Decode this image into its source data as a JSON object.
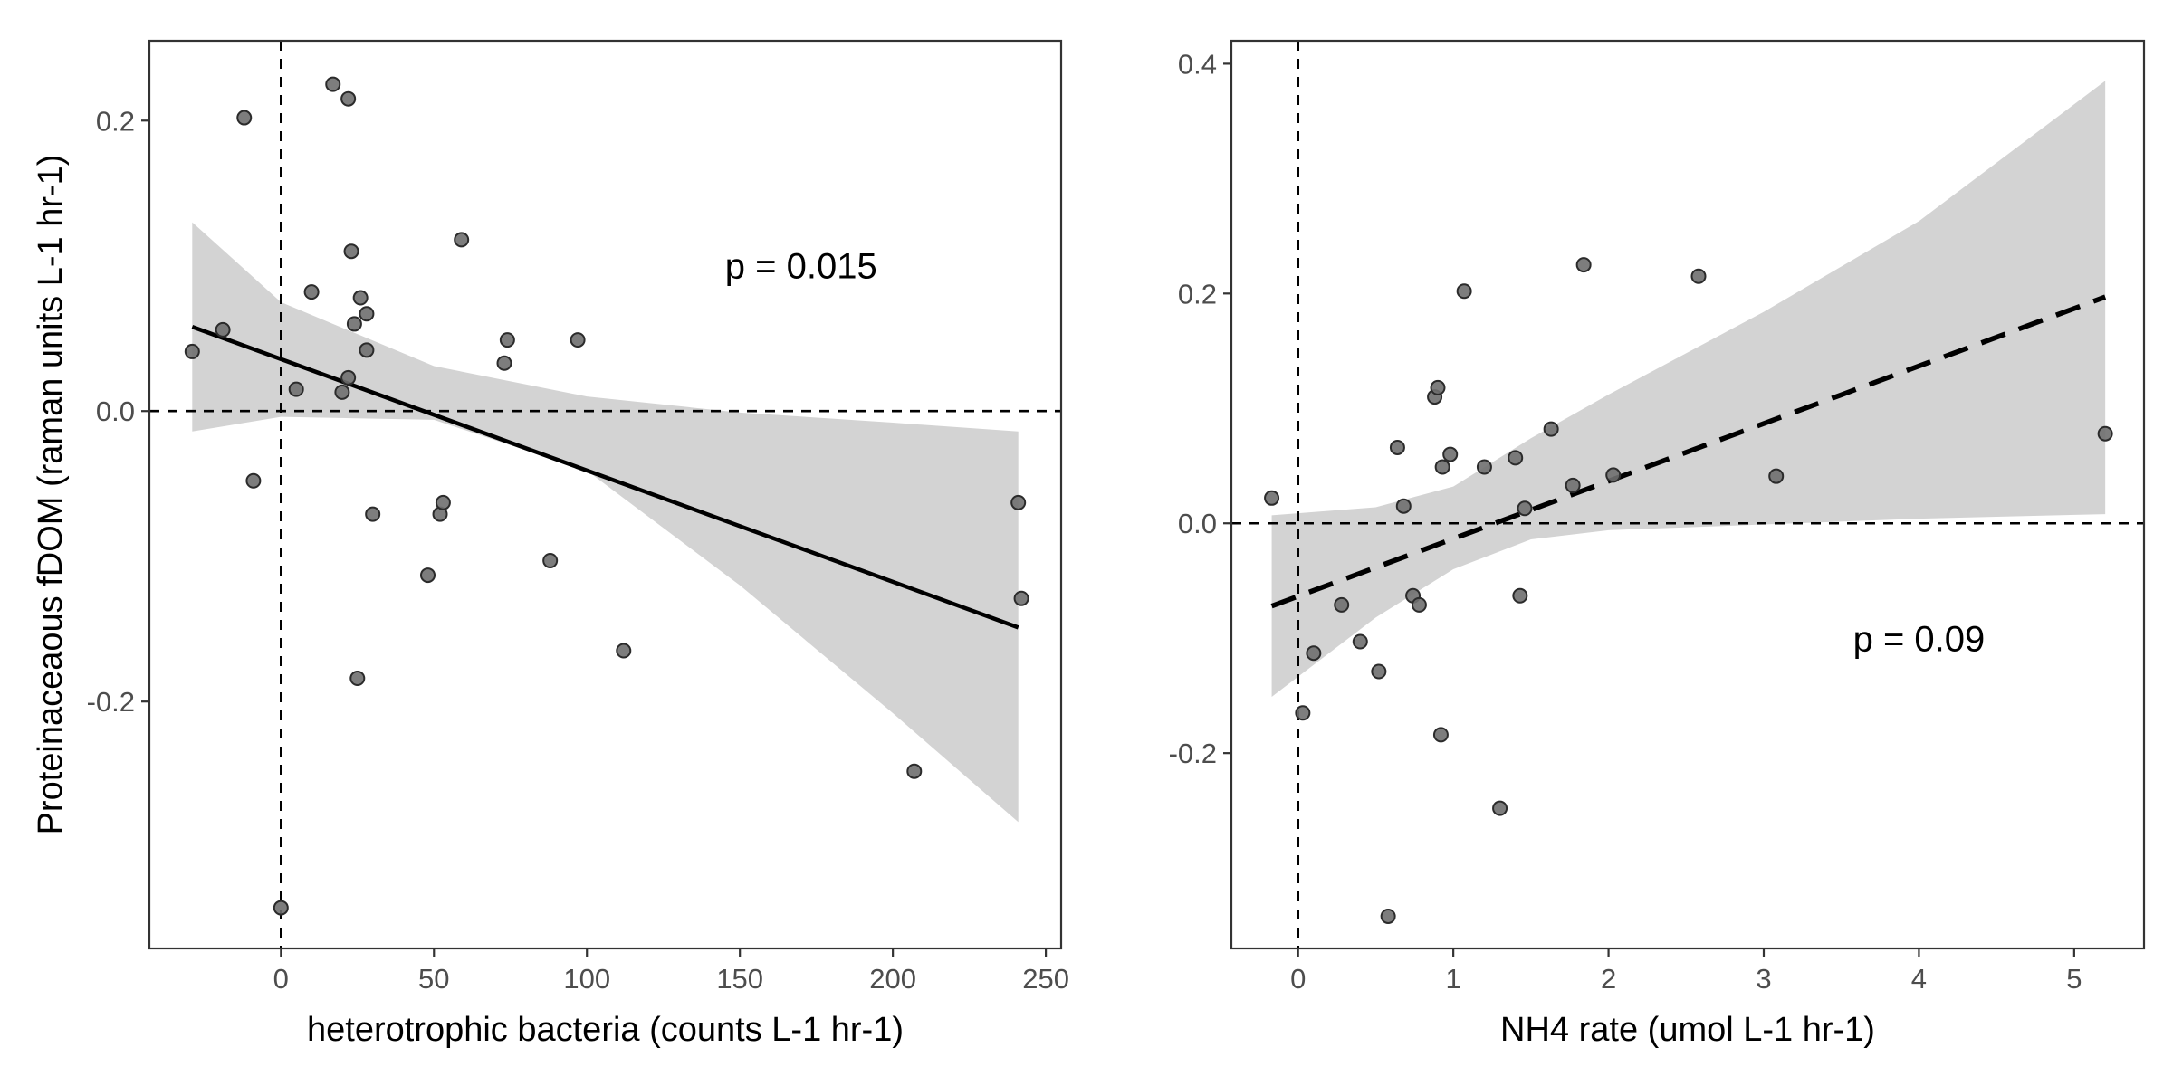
{
  "chart_data": [
    {
      "type": "scatter",
      "xlabel": "heterotrophic bacteria (counts L-1 hr-1)",
      "ylabel": "Proteinaceaous fDOM (raman units L-1 hr-1)",
      "xlim": [
        -43,
        255
      ],
      "ylim": [
        -0.37,
        0.255
      ],
      "xticks": [
        0,
        50,
        100,
        150,
        200,
        250
      ],
      "yticks": [
        -0.2,
        0.0,
        0.2
      ],
      "xtick_labels": [
        "0",
        "50",
        "100",
        "150",
        "200",
        "250"
      ],
      "ytick_labels": [
        "-0.2",
        "0.0",
        "0.2"
      ],
      "grid": false,
      "reference_lines": {
        "x": 0,
        "y": 0
      },
      "annotation": {
        "text": "p = 0.015",
        "x": 170,
        "y": 0.098
      },
      "trend": {
        "style": "solid",
        "x": [
          -29,
          241
        ],
        "y": [
          0.058,
          -0.149
        ]
      },
      "confidence_band": {
        "x": [
          -29,
          0,
          50,
          100,
          150,
          200,
          241
        ],
        "lower": [
          -0.014,
          -0.004,
          -0.006,
          -0.041,
          -0.12,
          -0.208,
          -0.283
        ],
        "upper": [
          0.13,
          0.075,
          0.031,
          0.01,
          -0.001,
          -0.008,
          -0.014
        ]
      },
      "points": {
        "x": [
          -29,
          -19,
          -12,
          -9,
          0,
          5,
          10,
          17,
          20,
          22,
          22,
          23,
          24,
          25,
          26,
          28,
          28,
          30,
          48,
          52,
          53,
          59,
          73,
          74,
          88,
          97,
          112,
          207,
          241,
          242
        ],
        "y": [
          0.041,
          0.056,
          0.202,
          -0.048,
          -0.342,
          0.015,
          0.082,
          0.225,
          0.013,
          0.215,
          0.023,
          0.11,
          0.06,
          -0.184,
          0.078,
          0.042,
          0.067,
          -0.071,
          -0.113,
          -0.071,
          -0.063,
          0.118,
          0.033,
          0.049,
          -0.103,
          0.049,
          -0.165,
          -0.248,
          -0.063,
          -0.129
        ]
      }
    },
    {
      "type": "scatter",
      "xlabel": "NH4 rate (umol L-1 hr-1)",
      "ylabel": "",
      "xlim": [
        -0.43,
        5.45
      ],
      "ylim": [
        -0.37,
        0.42
      ],
      "xticks": [
        0,
        1,
        2,
        3,
        4,
        5
      ],
      "yticks": [
        -0.2,
        0.0,
        0.2,
        0.4
      ],
      "xtick_labels": [
        "0",
        "1",
        "2",
        "3",
        "4",
        "5"
      ],
      "ytick_labels": [
        "-0.2",
        "0.0",
        "0.2",
        "0.4"
      ],
      "grid": false,
      "reference_lines": {
        "x": 0,
        "y": 0
      },
      "annotation": {
        "text": "p = 0.09",
        "x": 4.0,
        "y": -0.103
      },
      "trend": {
        "style": "dashed",
        "x": [
          -0.17,
          5.2
        ],
        "y": [
          -0.072,
          0.197
        ]
      },
      "confidence_band": {
        "x": [
          -0.17,
          0.5,
          1.0,
          1.5,
          2.0,
          3.0,
          4.0,
          5.2
        ],
        "lower": [
          -0.151,
          -0.082,
          -0.04,
          -0.014,
          -0.006,
          -0.001,
          0.004,
          0.008
        ],
        "upper": [
          0.007,
          0.014,
          0.032,
          0.074,
          0.112,
          0.184,
          0.263,
          0.385
        ]
      },
      "points": {
        "x": [
          -0.17,
          0.03,
          0.1,
          0.28,
          0.4,
          0.52,
          0.58,
          0.64,
          0.68,
          0.74,
          0.78,
          0.88,
          0.9,
          0.92,
          0.93,
          0.98,
          1.07,
          1.2,
          1.3,
          1.4,
          1.43,
          1.46,
          1.63,
          1.77,
          1.84,
          2.03,
          2.58,
          3.08,
          5.2
        ],
        "y": [
          0.022,
          -0.165,
          -0.113,
          -0.071,
          -0.103,
          -0.129,
          -0.342,
          0.066,
          0.015,
          -0.063,
          -0.071,
          0.11,
          0.118,
          -0.184,
          0.049,
          0.06,
          0.202,
          0.049,
          -0.248,
          0.057,
          -0.063,
          0.013,
          0.082,
          0.033,
          0.225,
          0.042,
          0.215,
          0.041,
          0.078
        ]
      }
    }
  ],
  "colors": {
    "point_fill": "#6f6f6f",
    "point_stroke": "#2b2b2b",
    "band": "#d3d3d3",
    "line": "#000000",
    "tick_label": "#4d4d4d"
  }
}
